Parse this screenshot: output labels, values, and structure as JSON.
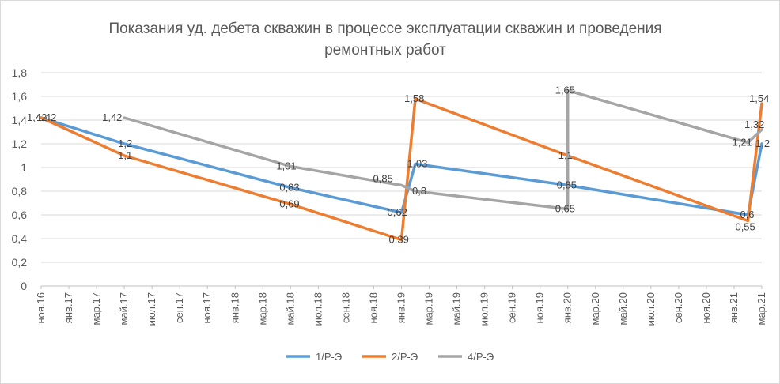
{
  "chart_data": {
    "type": "line",
    "title_lines": [
      "Показания уд. дебета скважин в процессе эксплуатации скважин и проведения",
      "ремонтных работ"
    ],
    "ylim": [
      0,
      1.8
    ],
    "yticks": [
      "0",
      "0,2",
      "0,4",
      "0,6",
      "0,8",
      "1",
      "1,2",
      "1,4",
      "1,6",
      "1,8"
    ],
    "x_tick_labels": [
      "ноя.16",
      "янв.17",
      "мар.17",
      "май.17",
      "июл.17",
      "сен.17",
      "ноя.17",
      "янв.18",
      "мар.18",
      "май.18",
      "июл.18",
      "сен.18",
      "ноя.18",
      "янв.19",
      "мар.19",
      "май.19",
      "июл.19",
      "сен.19",
      "ноя.19",
      "янв.20",
      "мар.20",
      "май.20",
      "июл.20",
      "сен.20",
      "ноя.20",
      "янв.21",
      "мар.21"
    ],
    "grid": true,
    "legend_position": "bottom",
    "series": [
      {
        "name": "1/Р-Э",
        "color": "#5b9bd5",
        "points": [
          {
            "x": "2016-11-01",
            "y": 1.42,
            "label": "1,42"
          },
          {
            "x": "2017-05-01",
            "y": 1.2,
            "label": "1,2"
          },
          {
            "x": "2018-05-01",
            "y": 0.83,
            "label": "0,83"
          },
          {
            "x": "2019-01-01",
            "y": 0.62,
            "label": "0,62"
          },
          {
            "x": "2019-02-01",
            "y": 1.03,
            "label": "1,03"
          },
          {
            "x": "2020-01-01",
            "y": 0.85,
            "label": "0,85"
          },
          {
            "x": "2021-02-01",
            "y": 0.6,
            "label": "0,6"
          },
          {
            "x": "2021-03-01",
            "y": 1.2,
            "label": "1,2"
          }
        ]
      },
      {
        "name": "2/Р-Э",
        "color": "#ed7d31",
        "points": [
          {
            "x": "2016-11-01",
            "y": 1.42,
            "label": "1,42"
          },
          {
            "x": "2017-05-01",
            "y": 1.1,
            "label": "1,1"
          },
          {
            "x": "2018-05-01",
            "y": 0.69,
            "label": "0,69"
          },
          {
            "x": "2019-01-01",
            "y": 0.39,
            "label": "0,39"
          },
          {
            "x": "2019-02-01",
            "y": 1.58,
            "label": "1,58"
          },
          {
            "x": "2020-01-01",
            "y": 1.1,
            "label": "1,1"
          },
          {
            "x": "2021-02-01",
            "y": 0.55,
            "label": "0,55"
          },
          {
            "x": "2021-03-01",
            "y": 1.54,
            "label": "1,54"
          }
        ]
      },
      {
        "name": "4/Р-Э",
        "color": "#a5a5a5",
        "points": [
          {
            "x": "2017-05-01",
            "y": 1.42,
            "label": "1,42"
          },
          {
            "x": "2018-05-01",
            "y": 1.01,
            "label": "1,01"
          },
          {
            "x": "2019-01-01",
            "y": 0.85,
            "label": "0,85"
          },
          {
            "x": "2019-02-01",
            "y": 0.8,
            "label": "0,8"
          },
          {
            "x": "2020-01-01",
            "y": 0.65,
            "label": "0,65"
          },
          {
            "x": "2020-01-01",
            "y": 1.65,
            "label": "1,65"
          },
          {
            "x": "2021-02-01",
            "y": 1.21,
            "label": "1,21"
          },
          {
            "x": "2021-03-01",
            "y": 1.32,
            "label": "1,32"
          }
        ]
      }
    ]
  }
}
